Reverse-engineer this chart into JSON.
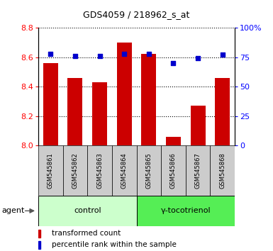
{
  "title": "GDS4059 / 218962_s_at",
  "samples": [
    "GSM545861",
    "GSM545862",
    "GSM545863",
    "GSM545864",
    "GSM545865",
    "GSM545866",
    "GSM545867",
    "GSM545868"
  ],
  "red_values": [
    8.56,
    8.46,
    8.43,
    8.7,
    8.62,
    8.06,
    8.27,
    8.46
  ],
  "blue_values": [
    78,
    76,
    76,
    78,
    78,
    70,
    74,
    77
  ],
  "ylim_left": [
    8.0,
    8.8
  ],
  "ylim_right": [
    0,
    100
  ],
  "left_ticks": [
    8.0,
    8.2,
    8.4,
    8.6,
    8.8
  ],
  "right_ticks": [
    0,
    25,
    50,
    75,
    100
  ],
  "right_tick_labels": [
    "0",
    "25",
    "50",
    "75",
    "100%"
  ],
  "groups": [
    {
      "label": "control",
      "start": 0,
      "end": 4,
      "color": "#ccffcc"
    },
    {
      "label": "γ-tocotrienol",
      "start": 4,
      "end": 8,
      "color": "#55ee55"
    }
  ],
  "agent_label": "agent",
  "bar_color": "#cc0000",
  "dot_color": "#0000cc",
  "bar_bottom": 8.0,
  "legend_items": [
    {
      "label": "transformed count",
      "color": "#cc0000"
    },
    {
      "label": "percentile rank within the sample",
      "color": "#0000cc"
    }
  ]
}
